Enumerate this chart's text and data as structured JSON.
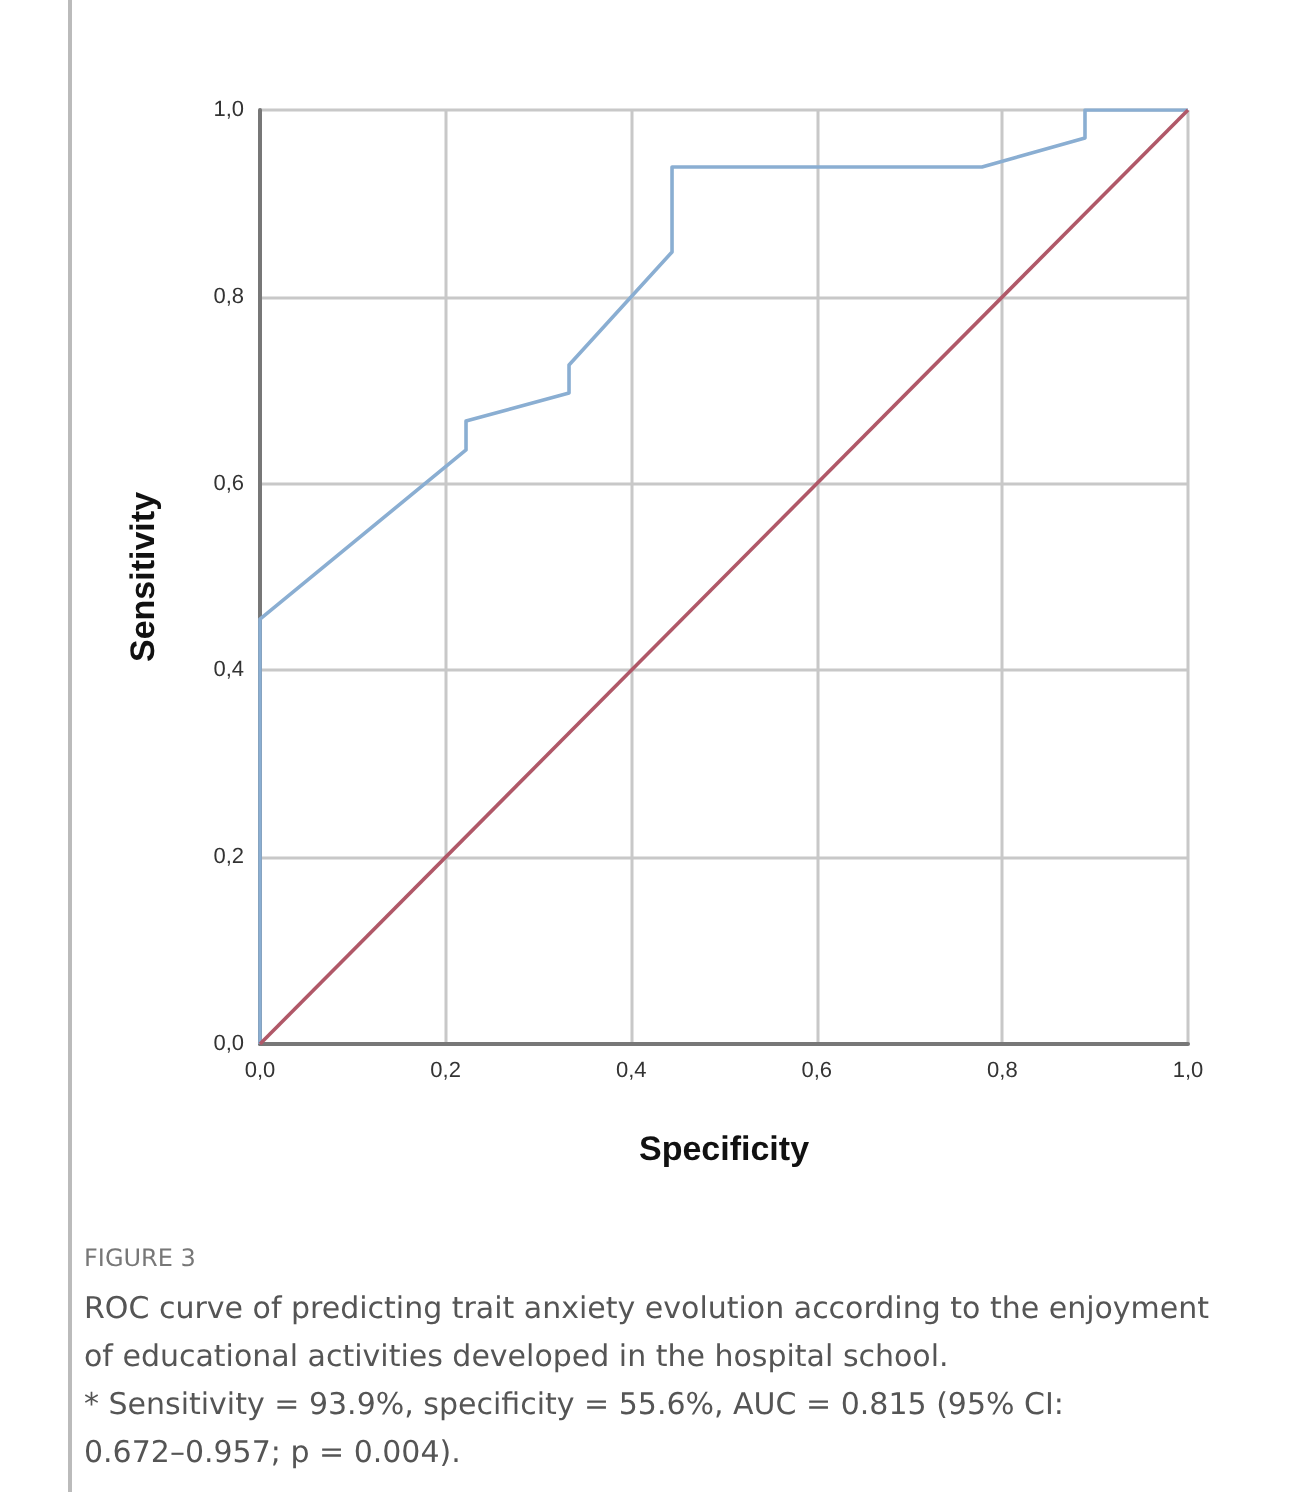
{
  "chart_data": {
    "type": "line",
    "xlabel": "Specificity",
    "ylabel": "Sensitivity",
    "xlim": [
      0,
      1
    ],
    "ylim": [
      0,
      1
    ],
    "xticks": [
      {
        "value": 0,
        "label": "0,0"
      },
      {
        "value": 0.2,
        "label": "0,2"
      },
      {
        "value": 0.4,
        "label": "0,4"
      },
      {
        "value": 0.6,
        "label": "0,6"
      },
      {
        "value": 0.8,
        "label": "0,8"
      },
      {
        "value": 1,
        "label": "1,0"
      }
    ],
    "yticks": [
      {
        "value": 0,
        "label": "0,0"
      },
      {
        "value": 0.2,
        "label": "0,2"
      },
      {
        "value": 0.4,
        "label": "0,4"
      },
      {
        "value": 0.6,
        "label": "0,6"
      },
      {
        "value": 0.8,
        "label": "0,8"
      },
      {
        "value": 1,
        "label": "1,0"
      }
    ],
    "grid": true,
    "marker": "none",
    "line_style": "solid",
    "series": [
      {
        "color": "#8aaed2",
        "x": [
          0,
          0,
          0.222,
          0.222,
          0.333,
          0.333,
          0.444,
          0.444,
          0.778,
          0.889,
          0.889,
          1
        ],
        "values": [
          0,
          0.455,
          0.636,
          0.667,
          0.697,
          0.727,
          0.848,
          0.939,
          0.939,
          0.97,
          1,
          1
        ]
      },
      {
        "color": "#b05868",
        "x": [
          0,
          1
        ],
        "values": [
          0,
          1
        ]
      }
    ],
    "annotations": [
      "FIGURE 3",
      "ROC curve of predicting trait anxiety evolution according to the enjoyment of educational activities developed in the hospital school.",
      "* Sensitivity = 93.9%, specificity = 55.6%, AUC = 0.815 (95% CI: 0.672–0.957; p = 0.004)."
    ]
  }
}
